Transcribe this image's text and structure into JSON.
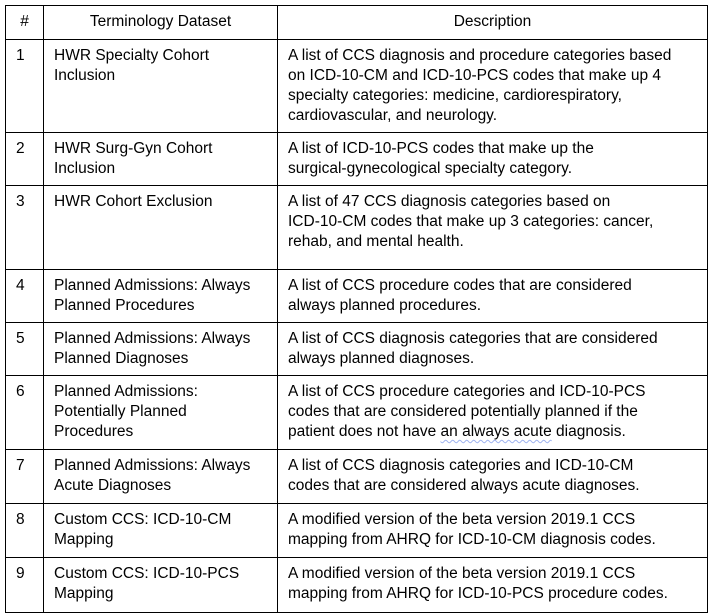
{
  "colors": {
    "background": "#ffffff",
    "border": "#000000",
    "text": "#000000",
    "grammar_underline": "#9fb3ef"
  },
  "table": {
    "headers": {
      "num": "#",
      "dataset": "Terminology Dataset",
      "description": "Description"
    },
    "rows": [
      {
        "num": "1",
        "dataset": "HWR Specialty Cohort\nInclusion",
        "description": "A list of CCS diagnosis and procedure categories based\non ICD-10-CM and ICD-10-PCS codes that make up 4\nspecialty categories: medicine, cardiorespiratory,\ncardiovascular, and neurology."
      },
      {
        "num": "2",
        "dataset": "HWR Surg-Gyn Cohort\nInclusion",
        "description": "A list of ICD-10-PCS codes that make up the\nsurgical-gynecological specialty category."
      },
      {
        "num": "3",
        "dataset": "HWR Cohort Exclusion",
        "description": "A list of 47 CCS diagnosis categories based on\nICD-10-CM codes that make up 3 categories: cancer,\nrehab, and mental health."
      },
      {
        "num": "4",
        "dataset": "Planned Admissions: Always\nPlanned Procedures",
        "description": "A list of CCS procedure codes that are considered\nalways planned procedures."
      },
      {
        "num": "5",
        "dataset": "Planned Admissions: Always\nPlanned Diagnoses",
        "description": "A list of CCS diagnosis categories that are considered\nalways planned diagnoses."
      },
      {
        "num": "6",
        "dataset": "Planned Admissions:\nPotentially Planned\nProcedures",
        "description_before": "A list of CCS procedure categories and ICD-10-PCS\ncodes that are considered potentially planned if the\npatient does not have ",
        "description_grammar_flagged": "an always acute",
        "description_after": " diagnosis."
      },
      {
        "num": "7",
        "dataset": "Planned Admissions: Always\nAcute Diagnoses",
        "description": "A list of CCS diagnosis categories and ICD-10-CM\ncodes that are considered always acute diagnoses."
      },
      {
        "num": "8",
        "dataset": "Custom CCS: ICD-10-CM\nMapping",
        "description": "A modified version of the beta version 2019.1 CCS\nmapping from AHRQ for ICD-10-CM diagnosis codes."
      },
      {
        "num": "9",
        "dataset": "Custom CCS: ICD-10-PCS\nMapping",
        "description": "A modified version of the beta version 2019.1 CCS\nmapping from AHRQ for ICD-10-PCS procedure codes."
      }
    ]
  }
}
